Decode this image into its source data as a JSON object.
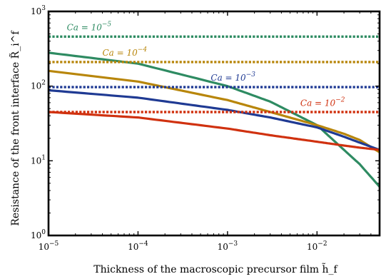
{
  "chart_data": {
    "type": "line",
    "xlabel": "Thickness of the macroscopic precursor film h̃_f",
    "ylabel": "Resistance of the front interface R̃_i^f",
    "xscale": "log",
    "yscale": "log",
    "xlim": [
      1e-05,
      0.05
    ],
    "ylim": [
      1,
      1000
    ],
    "grid": false,
    "x_ticks": [
      {
        "value": 1e-05,
        "mant": "10",
        "exp": "−5"
      },
      {
        "value": 0.0001,
        "mant": "10",
        "exp": "−4"
      },
      {
        "value": 0.001,
        "mant": "10",
        "exp": "−3"
      },
      {
        "value": 0.01,
        "mant": "10",
        "exp": "−2"
      }
    ],
    "y_ticks": [
      {
        "value": 1,
        "mant": "10",
        "exp": "0"
      },
      {
        "value": 10,
        "mant": "10",
        "exp": "1"
      },
      {
        "value": 100,
        "mant": "10",
        "exp": "2"
      },
      {
        "value": 1000,
        "mant": "10",
        "exp": "3"
      }
    ],
    "series": [
      {
        "key": "ca5-curve",
        "color": "#2e8b62",
        "style": "solid",
        "x": [
          1e-05,
          0.0001,
          0.001,
          0.003,
          0.01,
          0.02,
          0.03,
          0.05
        ],
        "y": [
          280,
          200,
          100,
          62,
          30,
          14,
          9,
          4.5
        ]
      },
      {
        "key": "ca4-curve",
        "color": "#b8860b",
        "style": "solid",
        "x": [
          1e-05,
          0.0001,
          0.001,
          0.003,
          0.01,
          0.02,
          0.03,
          0.05
        ],
        "y": [
          160,
          115,
          65,
          45,
          30,
          23,
          19,
          13
        ]
      },
      {
        "key": "ca3-curve",
        "color": "#1f3a93",
        "style": "solid",
        "x": [
          1e-05,
          0.0001,
          0.001,
          0.003,
          0.01,
          0.02,
          0.03,
          0.05
        ],
        "y": [
          88,
          70,
          48,
          38,
          28,
          21,
          17.5,
          14
        ]
      },
      {
        "key": "ca2-curve",
        "color": "#d0310f",
        "style": "solid",
        "x": [
          1e-05,
          0.0001,
          0.001,
          0.003,
          0.01,
          0.02,
          0.03,
          0.05
        ],
        "y": [
          45,
          38,
          27,
          22,
          18,
          16,
          15,
          14
        ]
      },
      {
        "key": "ca5-reference",
        "color": "#2e8b62",
        "style": "dotted",
        "x": [
          1e-05,
          0.05
        ],
        "y": [
          460,
          460
        ]
      },
      {
        "key": "ca4-reference",
        "color": "#b8860b",
        "style": "dotted",
        "x": [
          1e-05,
          0.05
        ],
        "y": [
          210,
          210
        ]
      },
      {
        "key": "ca3-reference",
        "color": "#1f3a93",
        "style": "dotted",
        "x": [
          1e-05,
          0.05
        ],
        "y": [
          97,
          97
        ]
      },
      {
        "key": "ca2-reference",
        "color": "#d0310f",
        "style": "dotted",
        "x": [
          1e-05,
          0.05
        ],
        "y": [
          45,
          45
        ]
      }
    ],
    "annotations": [
      {
        "key": "ca5",
        "prefix": "Ca = 10",
        "exp": "−5",
        "color": "#2e8b62",
        "x": 1.6e-05,
        "y": 560
      },
      {
        "key": "ca4",
        "prefix": "Ca = 10",
        "exp": "−4",
        "color": "#b8860b",
        "x": 4e-05,
        "y": 255
      },
      {
        "key": "ca3",
        "prefix": "Ca = 10",
        "exp": "−3",
        "color": "#1f3a93",
        "x": 0.00065,
        "y": 118
      },
      {
        "key": "ca2",
        "prefix": "Ca = 10",
        "exp": "−2",
        "color": "#d0310f",
        "x": 0.0065,
        "y": 54
      }
    ]
  }
}
